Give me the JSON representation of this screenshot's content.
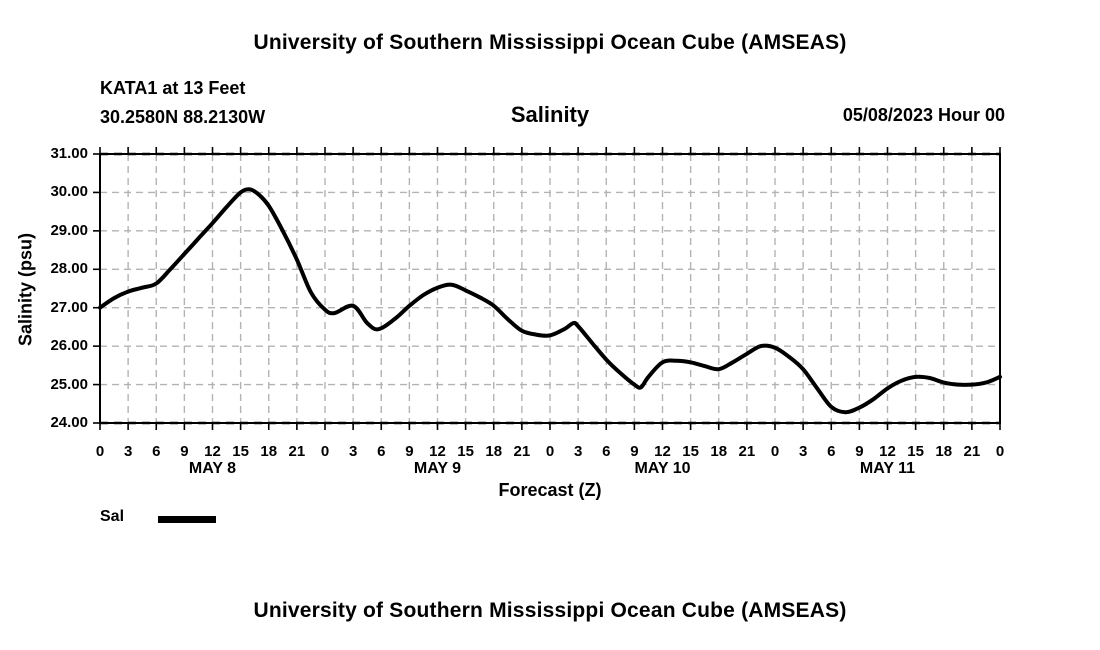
{
  "page": {
    "top_title": "University of Southern Mississippi Ocean Cube (AMSEAS)",
    "bottom_title": "University of Southern Mississippi Ocean Cube (AMSEAS)"
  },
  "header": {
    "station": "KATA1 at 13 Feet",
    "coordinates": "30.2580N  88.2130W",
    "plot_title": "Salinity",
    "run_time": "05/08/2023 Hour 00"
  },
  "axes": {
    "y_label": "Salinity (psu)",
    "x_label": "Forecast (Z)",
    "y_tick_labels": [
      "31.00",
      "30.00",
      "29.00",
      "28.00",
      "27.00",
      "26.00",
      "25.00",
      "24.00"
    ],
    "day_labels": [
      "MAY 8",
      "MAY 9",
      "MAY 10",
      "MAY 11"
    ]
  },
  "legend": {
    "label": "Sal"
  },
  "colors": {
    "background": "#ffffff",
    "text": "#000000",
    "line": "#000000",
    "grid": "#b3b3b3"
  },
  "chart_data": {
    "type": "line",
    "title": "Salinity",
    "subtitle_left": [
      "KATA1 at 13 Feet",
      "30.2580N  88.2130W"
    ],
    "subtitle_right": "05/08/2023 Hour 00",
    "xlabel": "Forecast (Z)",
    "ylabel": "Salinity (psu)",
    "ylim": [
      24,
      31
    ],
    "y_tick_interval": 1,
    "xlim_hours": [
      0,
      96
    ],
    "x_tick_interval_hours": 3,
    "x_hour_cycle": [
      0,
      3,
      6,
      9,
      12,
      15,
      18,
      21
    ],
    "x_days": [
      "MAY 8",
      "MAY 9",
      "MAY 10",
      "MAY 11"
    ],
    "grid": "dashed",
    "legend_position": "bottom-left",
    "series": [
      {
        "name": "Sal",
        "points_hour_psu": [
          [
            0,
            27.0
          ],
          [
            1.5,
            27.25
          ],
          [
            3,
            27.42
          ],
          [
            4.5,
            27.52
          ],
          [
            6,
            27.63
          ],
          [
            7.5,
            28.0
          ],
          [
            9,
            28.4
          ],
          [
            10.5,
            28.8
          ],
          [
            12,
            29.2
          ],
          [
            13.5,
            29.62
          ],
          [
            15,
            30.0
          ],
          [
            16,
            30.08
          ],
          [
            17,
            29.93
          ],
          [
            18,
            29.65
          ],
          [
            19.5,
            29.0
          ],
          [
            21,
            28.25
          ],
          [
            22.5,
            27.4
          ],
          [
            24,
            26.95
          ],
          [
            25,
            26.86
          ],
          [
            27,
            27.05
          ],
          [
            28.5,
            26.6
          ],
          [
            29.7,
            26.44
          ],
          [
            31.5,
            26.72
          ],
          [
            33,
            27.05
          ],
          [
            34.5,
            27.33
          ],
          [
            36,
            27.52
          ],
          [
            37.5,
            27.6
          ],
          [
            39,
            27.45
          ],
          [
            40.5,
            27.27
          ],
          [
            42,
            27.05
          ],
          [
            43.5,
            26.7
          ],
          [
            45,
            26.4
          ],
          [
            46.5,
            26.3
          ],
          [
            48,
            26.28
          ],
          [
            49.5,
            26.44
          ],
          [
            50.5,
            26.6
          ],
          [
            51,
            26.52
          ],
          [
            52.5,
            26.08
          ],
          [
            54,
            25.65
          ],
          [
            55.5,
            25.3
          ],
          [
            57,
            25.0
          ],
          [
            57.7,
            24.93
          ],
          [
            58.5,
            25.2
          ],
          [
            60,
            25.58
          ],
          [
            61.5,
            25.62
          ],
          [
            63,
            25.58
          ],
          [
            64.5,
            25.48
          ],
          [
            66,
            25.4
          ],
          [
            67.5,
            25.58
          ],
          [
            69,
            25.8
          ],
          [
            70.5,
            26.0
          ],
          [
            72,
            25.96
          ],
          [
            73.5,
            25.72
          ],
          [
            75,
            25.4
          ],
          [
            76.5,
            24.9
          ],
          [
            78,
            24.42
          ],
          [
            79.5,
            24.28
          ],
          [
            81,
            24.4
          ],
          [
            82.5,
            24.62
          ],
          [
            84,
            24.9
          ],
          [
            85.5,
            25.1
          ],
          [
            87,
            25.2
          ],
          [
            88.5,
            25.17
          ],
          [
            90,
            25.05
          ],
          [
            91.5,
            25.0
          ],
          [
            93,
            25.0
          ],
          [
            94.5,
            25.05
          ],
          [
            96,
            25.2
          ]
        ]
      }
    ]
  }
}
